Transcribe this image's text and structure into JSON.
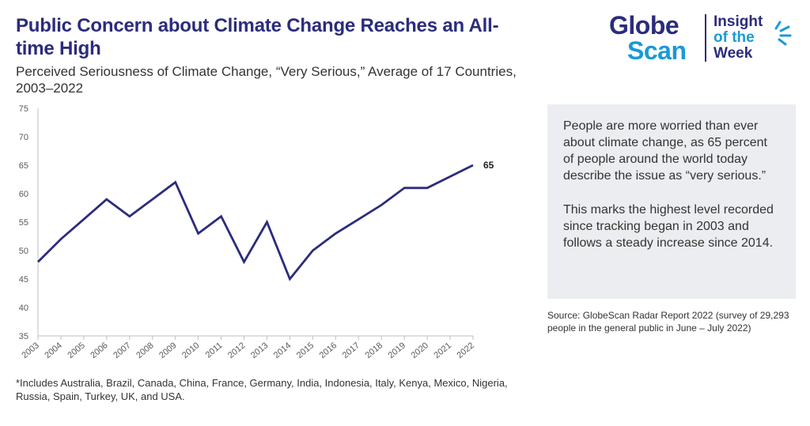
{
  "header": {
    "title": "Public Concern about Climate Change Reaches an All-time High",
    "subtitle": "Perceived Seriousness of Climate Change, “Very Serious,” Average of 17 Countries, 2003–2022"
  },
  "logo": {
    "word1": "Globe",
    "word2": "Scan",
    "insight_line1": "Insight",
    "insight_line2": "of the",
    "insight_line3": "Week",
    "primary_color": "#2b2c7c",
    "accent_color": "#1a9ad6"
  },
  "chart_data": {
    "type": "line",
    "x": [
      "2003",
      "2004",
      "2005",
      "2006",
      "2007",
      "2008",
      "2009",
      "2010",
      "2011",
      "2012",
      "2013",
      "2014",
      "2015",
      "2016",
      "2017",
      "2018",
      "2019",
      "2020",
      "2021",
      "2022"
    ],
    "series": [
      {
        "values": [
          48,
          52,
          55.5,
          59,
          56,
          59,
          62,
          53,
          56,
          48,
          55,
          45,
          50,
          53,
          55.5,
          58,
          61,
          61,
          63,
          65
        ],
        "color": "#2b2c7c"
      }
    ],
    "ylim": [
      35,
      75
    ],
    "yticks": [
      35,
      40,
      45,
      50,
      55,
      60,
      65,
      70,
      75
    ],
    "end_label": "65",
    "grid": false,
    "legend": "none"
  },
  "callout": {
    "paragraph1": "People are more worried than ever about climate change, as 65 percent of people around the world today describe the issue as “very serious.”",
    "paragraph2": "This marks the highest level recorded since tracking began in 2003 and follows a steady increase since 2014."
  },
  "source": "Source: GlobeScan Radar Report 2022 (survey of 29,293 people in the general public in June – July 2022)",
  "footnote": "*Includes Australia, Brazil, Canada, China, France, Germany, India, Indonesia, Italy, Kenya, Mexico, Nigeria, Russia, Spain, Turkey, UK, and USA."
}
